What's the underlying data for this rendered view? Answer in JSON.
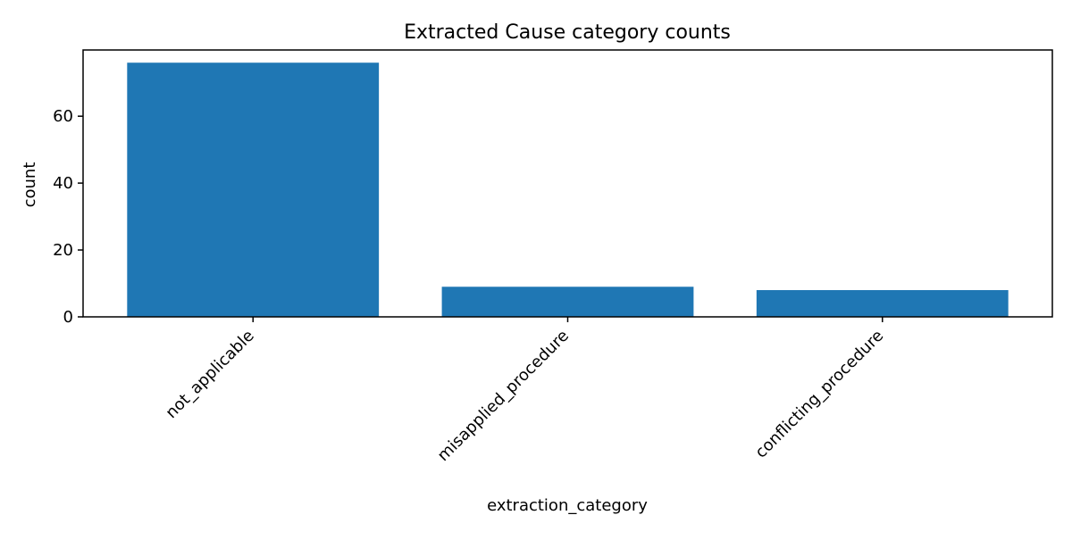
{
  "chart_data": {
    "type": "bar",
    "title": "Extracted Cause category counts",
    "xlabel": "extraction_category",
    "ylabel": "count",
    "categories": [
      "not_applicable",
      "misapplied_procedure",
      "conflicting_procedure"
    ],
    "values": [
      76,
      9,
      8
    ],
    "ylim": [
      0,
      79.8
    ],
    "yticks": [
      0,
      20,
      40,
      60
    ],
    "grid": false,
    "bar_color": "#1f77b4"
  }
}
